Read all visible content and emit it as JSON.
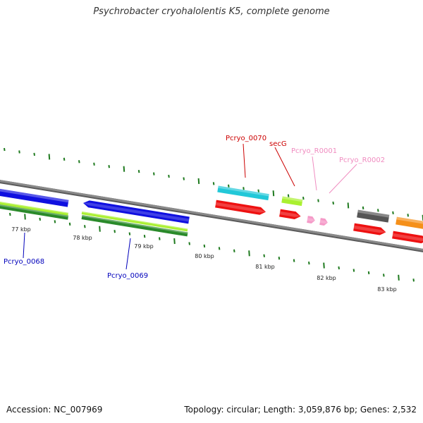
{
  "title": "Psychrobacter cryohalolentis K5, complete genome",
  "footer": {
    "accession": "Accession: NC_007969",
    "topology": "Topology: circular; Length: 3,059,876 bp; Genes: 2,532"
  },
  "colors": {
    "backbone": "#8a8a8a",
    "tick": "#1f7a1f",
    "cds_blue": "#1010e0",
    "cds_cyan": "#22c8d8",
    "cds_red": "#ee1111",
    "cds_lime": "#aaf030",
    "cds_green": "#2a8a2a",
    "cds_gray": "#555555",
    "cds_orange": "#f5901a",
    "trna_pink": "#f59ac8",
    "label_blue": "#0000bb",
    "label_red": "#cc0000",
    "label_pink": "#f08cc0"
  },
  "scale_labels": [
    "77 kbp",
    "78 kbp",
    "79 kbp",
    "80 kbp",
    "81 kbp",
    "82 kbp",
    "83 kbp"
  ],
  "gene_labels": [
    {
      "id": "pcryo-0068",
      "text": "Pcryo_0068",
      "color": "label_blue"
    },
    {
      "id": "pcryo-0069",
      "text": "Pcryo_0069",
      "color": "label_blue"
    },
    {
      "id": "pcryo-0070",
      "text": "Pcryo_0070",
      "color": "label_red"
    },
    {
      "id": "secg",
      "text": "secG",
      "color": "label_red"
    },
    {
      "id": "pcryo-r0001",
      "text": "Pcryo_R0001",
      "color": "label_pink"
    },
    {
      "id": "pcryo-r0002",
      "text": "Pcryo_R0002",
      "color": "label_pink"
    }
  ]
}
